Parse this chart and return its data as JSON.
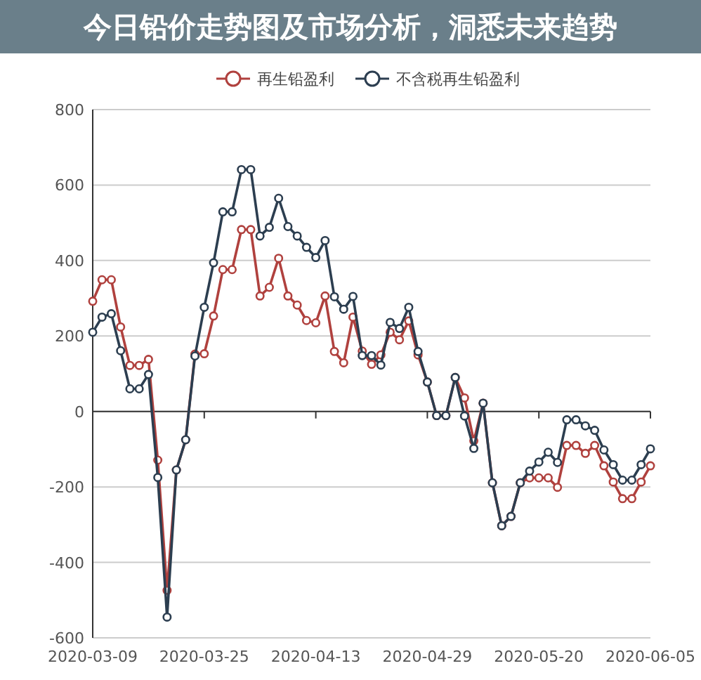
{
  "chart_data": {
    "type": "line",
    "title": "今日铅价走势图及市场分析，洞悉未来趋势",
    "categories": [
      "2020-03-09",
      null,
      null,
      null,
      null,
      null,
      null,
      null,
      null,
      null,
      null,
      null,
      "2020-03-25",
      null,
      null,
      null,
      null,
      null,
      null,
      null,
      null,
      null,
      null,
      null,
      "2020-04-13",
      null,
      null,
      null,
      null,
      null,
      null,
      null,
      null,
      null,
      null,
      null,
      "2020-04-29",
      null,
      null,
      null,
      null,
      null,
      null,
      null,
      null,
      null,
      null,
      null,
      "2020-05-20",
      null,
      null,
      null,
      null,
      null,
      null,
      null,
      null,
      null,
      null,
      null,
      "2020-06-05"
    ],
    "series": [
      {
        "name": "再生铅盈利",
        "color": "#b0413e",
        "values": [
          292,
          349,
          349,
          224,
          122,
          122,
          138,
          -129,
          -474,
          -155,
          -75,
          152,
          153,
          253,
          376,
          376,
          482,
          482,
          306,
          329,
          406,
          306,
          282,
          241,
          235,
          306,
          159,
          129,
          250,
          160,
          125,
          150,
          210,
          190,
          240,
          150,
          78,
          -11,
          -11,
          90,
          36,
          -78,
          22,
          -189,
          -303,
          -278,
          -189,
          -176,
          -176,
          -176,
          -201,
          -90,
          -90,
          -111,
          -90,
          -144,
          -187,
          -231,
          -231,
          -187,
          -144
        ]
      },
      {
        "name": "不含税再生铅盈利",
        "color": "#2c3e50",
        "values": [
          210,
          250,
          259,
          161,
          60,
          60,
          98,
          -175,
          -545,
          -155,
          -75,
          147,
          276,
          394,
          529,
          529,
          641,
          641,
          465,
          488,
          565,
          490,
          465,
          435,
          408,
          453,
          304,
          271,
          305,
          148,
          148,
          123,
          236,
          220,
          276,
          159,
          78,
          -11,
          -11,
          90,
          -12,
          -98,
          22,
          -189,
          -303,
          -278,
          -189,
          -158,
          -134,
          -108,
          -135,
          -22,
          -22,
          -38,
          -50,
          -102,
          -141,
          -182,
          -182,
          -141,
          -99
        ]
      }
    ],
    "ylim": [
      -600,
      800
    ],
    "yticks": [
      -600,
      -400,
      -200,
      0,
      200,
      400,
      600,
      800
    ],
    "grid": "y",
    "legend": "top",
    "marker": "circle",
    "line_style": "solid"
  }
}
